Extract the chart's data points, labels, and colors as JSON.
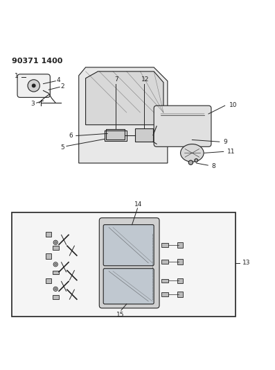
{
  "title_code": "90371 1400",
  "background_color": "#ffffff",
  "line_color": "#222222",
  "figsize": [
    3.97,
    5.33
  ],
  "dpi": 100
}
